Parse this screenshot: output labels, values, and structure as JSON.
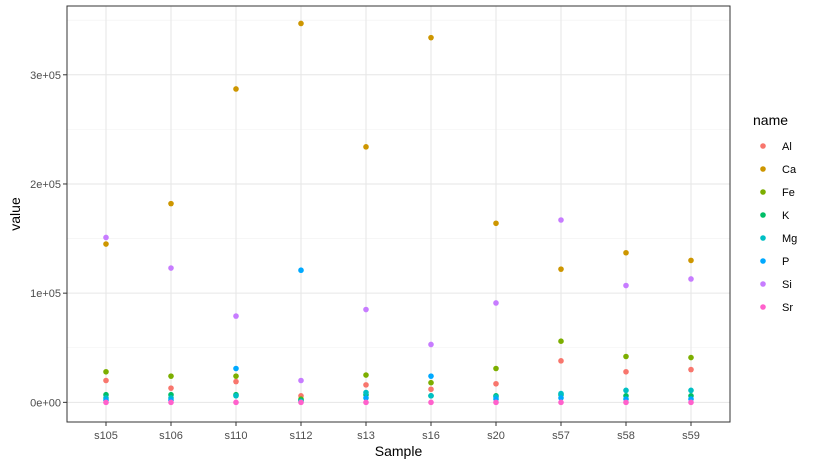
{
  "chart_data": {
    "type": "scatter",
    "xlabel": "Sample",
    "ylabel": "value",
    "categories": [
      "s105",
      "s106",
      "s110",
      "s112",
      "s13",
      "s16",
      "s20",
      "s57",
      "s58",
      "s59"
    ],
    "y_ticks": [
      {
        "value": 0,
        "label": "0e+00"
      },
      {
        "value": 100000,
        "label": "1e+05"
      },
      {
        "value": 200000,
        "label": "2e+05"
      },
      {
        "value": 300000,
        "label": "3e+05"
      }
    ],
    "ylim": [
      -18000,
      363000
    ],
    "grid": true,
    "legend_position": "right",
    "legend_title": "name",
    "series": [
      {
        "name": "Al",
        "color": "#F8766D",
        "values": [
          20000,
          13000,
          19000,
          6000,
          16000,
          12000,
          17000,
          38000,
          28000,
          30000
        ]
      },
      {
        "name": "Ca",
        "color": "#CD9600",
        "values": [
          145000,
          182000,
          287000,
          347000,
          234000,
          334000,
          164000,
          122000,
          137000,
          130000
        ]
      },
      {
        "name": "Fe",
        "color": "#7CAE00",
        "values": [
          28000,
          24000,
          24000,
          3000,
          25000,
          18000,
          31000,
          56000,
          42000,
          41000
        ]
      },
      {
        "name": "K",
        "color": "#00BE67",
        "values": [
          7000,
          7000,
          7000,
          2000,
          7000,
          6000,
          6000,
          7000,
          6000,
          6000
        ]
      },
      {
        "name": "Mg",
        "color": "#00BFC4",
        "values": [
          4000,
          4000,
          6000,
          1000,
          9000,
          6000,
          5000,
          8000,
          11000,
          11000
        ]
      },
      {
        "name": "P",
        "color": "#00A9FF",
        "values": [
          2000,
          2000,
          31000,
          121000,
          4000,
          24000,
          3000,
          4000,
          3000,
          3000
        ]
      },
      {
        "name": "Si",
        "color": "#C77CFF",
        "values": [
          151000,
          123000,
          79000,
          20000,
          85000,
          53000,
          91000,
          167000,
          107000,
          113000
        ]
      },
      {
        "name": "Sr",
        "color": "#FF61CC",
        "values": [
          0,
          0,
          0,
          0,
          0,
          0,
          0,
          0,
          0,
          0
        ]
      }
    ]
  }
}
